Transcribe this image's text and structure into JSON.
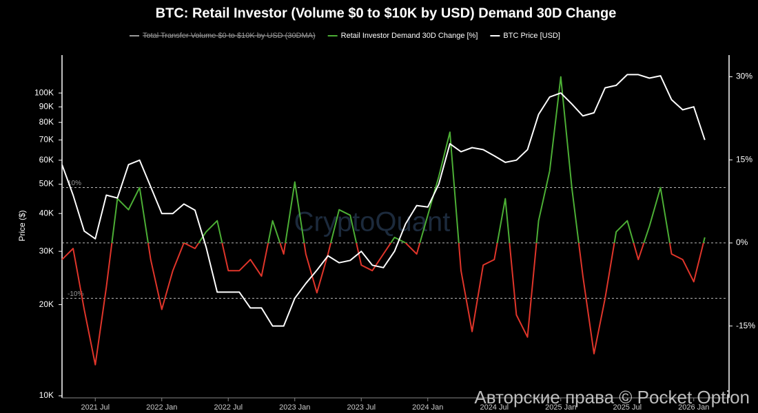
{
  "chart_data": {
    "type": "line",
    "title": "BTC: Retail Investor (Volume $0 to $10K by USD) Demand 30D Change",
    "y_label": "Price ($)",
    "watermark": "CryptoQuant",
    "overlay_text": "Авторские права © Pocket Option",
    "legend_hidden": {
      "name": "Total Transfer Volume $0 to $10K by USD (30DMA)",
      "color": "#9a9a9a"
    },
    "x": [
      "2021-04",
      "2021-05",
      "2021-06",
      "2021-07",
      "2021-08",
      "2021-09",
      "2021-10",
      "2021-11",
      "2021-12",
      "2022-01",
      "2022-02",
      "2022-03",
      "2022-04",
      "2022-05",
      "2022-06",
      "2022-07",
      "2022-08",
      "2022-09",
      "2022-10",
      "2022-11",
      "2022-12",
      "2023-01",
      "2023-02",
      "2023-03",
      "2023-04",
      "2023-05",
      "2023-06",
      "2023-07",
      "2023-08",
      "2023-09",
      "2023-10",
      "2023-11",
      "2023-12",
      "2024-01",
      "2024-02",
      "2024-03",
      "2024-04",
      "2024-05",
      "2024-06",
      "2024-07",
      "2024-08",
      "2024-09",
      "2024-10",
      "2024-11",
      "2024-12",
      "2025-01",
      "2025-02",
      "2025-03",
      "2025-04",
      "2025-05",
      "2025-06",
      "2025-07",
      "2025-08",
      "2025-09",
      "2025-10",
      "2025-11",
      "2025-12",
      "2026-01",
      "2026-02"
    ],
    "xlim": [
      "2021-04",
      "2026-04"
    ],
    "xticks": [
      {
        "value": "2021-07",
        "label": "2021 Jul"
      },
      {
        "value": "2022-01",
        "label": "2022 Jan"
      },
      {
        "value": "2022-07",
        "label": "2022 Jul"
      },
      {
        "value": "2023-01",
        "label": "2023 Jan"
      },
      {
        "value": "2023-07",
        "label": "2023 Jul"
      },
      {
        "value": "2024-01",
        "label": "2024 Jan"
      },
      {
        "value": "2024-07",
        "label": "2024 Jul"
      },
      {
        "value": "2025-01",
        "label": "2025 Jan"
      },
      {
        "value": "2025-07",
        "label": "2025 Jul"
      },
      {
        "value": "2026-01",
        "label": "2026 Jan"
      }
    ],
    "series": [
      {
        "name": "Retail Investor Demand 30D Change [%]",
        "color": "#4caf35",
        "negative_color": "#e0352a",
        "axis": "y2",
        "values": [
          -3,
          -1,
          -12,
          -22,
          -8,
          8,
          6,
          10,
          -3,
          -12,
          -5,
          0,
          -1,
          2,
          4,
          -5,
          -5,
          -3,
          -6,
          4,
          -2,
          11,
          -2,
          -9,
          -2,
          6,
          5,
          -4,
          -5,
          -2,
          1,
          0,
          -2,
          5,
          12,
          20,
          -5,
          -16,
          -4,
          -3,
          8,
          -13,
          -17,
          4,
          13,
          30,
          10,
          -6,
          -20,
          -10,
          2,
          4,
          -3,
          3,
          10,
          -2,
          -3,
          -7,
          1
        ]
      },
      {
        "name": "BTC Price [USD]",
        "color": "#ffffff",
        "values": [
          58000,
          46000,
          35000,
          33000,
          46000,
          45000,
          58000,
          60000,
          49000,
          40000,
          40000,
          43000,
          41000,
          31000,
          22000,
          22000,
          22000,
          19500,
          19500,
          17000,
          17000,
          21000,
          23500,
          26000,
          29000,
          27500,
          28000,
          30000,
          27000,
          26500,
          30000,
          37000,
          42500,
          42000,
          50000,
          68000,
          64000,
          66000,
          65000,
          62000,
          59000,
          60000,
          65000,
          85000,
          97000,
          100000,
          92000,
          84000,
          86000,
          104000,
          106000,
          115000,
          115000,
          112000,
          114000,
          95000,
          88000,
          90000,
          70000
        ]
      }
    ],
    "ylog": true,
    "ylim": [
      10000,
      130000
    ],
    "yticks": [
      {
        "value": 10000,
        "label": "10K"
      },
      {
        "value": 20000,
        "label": "20K"
      },
      {
        "value": 30000,
        "label": "30K"
      },
      {
        "value": 40000,
        "label": "40K"
      },
      {
        "value": 50000,
        "label": "50K"
      },
      {
        "value": 60000,
        "label": "60K"
      },
      {
        "value": 70000,
        "label": "70K"
      },
      {
        "value": 80000,
        "label": "80K"
      },
      {
        "value": 90000,
        "label": "90K"
      },
      {
        "value": 100000,
        "label": "100K"
      }
    ],
    "y2lim": [
      -27.6,
      33.3
    ],
    "y2ticks": [
      {
        "value": -15,
        "label": "-15%"
      },
      {
        "value": 0,
        "label": "0%"
      },
      {
        "value": 15,
        "label": "15%"
      },
      {
        "value": 30,
        "label": "30%"
      }
    ],
    "reference_lines": [
      {
        "value": 10,
        "label": "10%"
      },
      {
        "value": 0
      },
      {
        "value": -10,
        "label": "-10%"
      }
    ],
    "grid": false
  }
}
